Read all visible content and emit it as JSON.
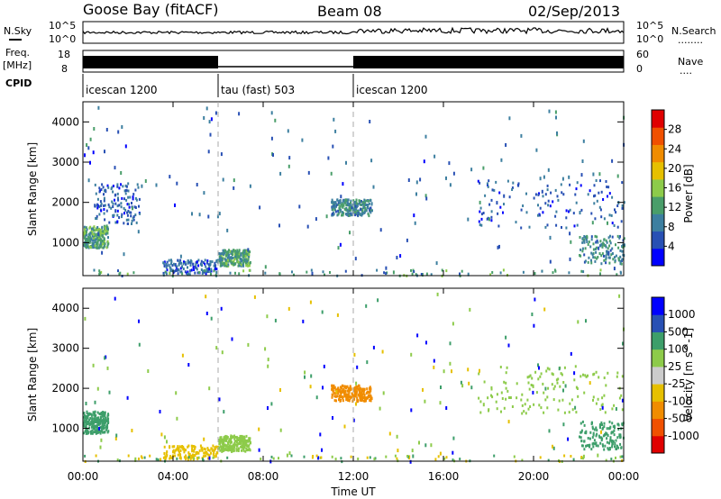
{
  "header": {
    "station": "Goose Bay (fitACF)",
    "beam": "Beam 08",
    "date": "02/Sep/2013"
  },
  "labels": {
    "nsky": "N.Sky",
    "nsearch": "N.Search",
    "nsearch_dots": "........",
    "freq": "Freq.",
    "mhz": "[MHz]",
    "nave": "Nave",
    "nave_dots": "....",
    "cpid": "CPID"
  },
  "noise_panel": {
    "left_ticks": [
      "10^5",
      "10^0"
    ],
    "right_ticks": [
      "10^5",
      "10^0"
    ]
  },
  "freq_panel": {
    "left_ticks": [
      "18",
      "8"
    ],
    "right_ticks": [
      "60",
      "0"
    ]
  },
  "cpid_segments": [
    {
      "label": "icescan 1200",
      "start_hour": 0,
      "end_hour": 6
    },
    {
      "label": "tau (fast) 503",
      "start_hour": 6,
      "end_hour": 12
    },
    {
      "label": "icescan 1200",
      "start_hour": 12,
      "end_hour": 24
    }
  ],
  "chart_data": [
    {
      "type": "heatmap",
      "parameter": "power",
      "ylabel": "Slant Range [km]",
      "ylim": [
        180,
        4500
      ],
      "yticks": [
        1000,
        2000,
        3000,
        4000
      ],
      "xlim_hours": [
        0,
        24
      ],
      "colorbar": {
        "label": "Power [dB]",
        "range": [
          0,
          32
        ],
        "tick_labels": [
          "28",
          "24",
          "20",
          "16",
          "12",
          "8",
          "4"
        ],
        "tick_values": [
          28,
          24,
          20,
          16,
          12,
          8,
          4
        ],
        "colors": [
          "#0000ff",
          "#2850b4",
          "#3d7fa0",
          "#4a9e6a",
          "#8dcb4a",
          "#e6c000",
          "#f08c00",
          "#f05000",
          "#e00000"
        ]
      },
      "scatter_regions": [
        {
          "t": [
            0.0,
            1.1
          ],
          "r": [
            900,
            1450
          ],
          "value": 12,
          "density": "high"
        },
        {
          "t": [
            0.5,
            2.5
          ],
          "r": [
            1500,
            2500
          ],
          "value": 6,
          "density": "med"
        },
        {
          "t": [
            3.5,
            6.0
          ],
          "r": [
            250,
            600
          ],
          "value": 6,
          "density": "med"
        },
        {
          "t": [
            6.0,
            7.4
          ],
          "r": [
            450,
            850
          ],
          "value": 12,
          "density": "high"
        },
        {
          "t": [
            11.0,
            12.8
          ],
          "r": [
            1700,
            2100
          ],
          "value": 10,
          "density": "high"
        },
        {
          "t": [
            17.5,
            24.0
          ],
          "r": [
            1400,
            2600
          ],
          "value": 6,
          "density": "med"
        },
        {
          "t": [
            22.0,
            24.0
          ],
          "r": [
            500,
            1200
          ],
          "value": 10,
          "density": "med"
        }
      ]
    },
    {
      "type": "heatmap",
      "parameter": "velocity",
      "ylabel": "Slant Range [km]",
      "ylim": [
        180,
        4500
      ],
      "yticks": [
        1000,
        2000,
        3000,
        4000
      ],
      "xlim_hours": [
        0,
        24
      ],
      "colorbar": {
        "label": "Velocity [m s^-1]",
        "tick_labels": [
          "1000",
          "500",
          "100",
          "25",
          "-25",
          "-100",
          "-500",
          "-1000"
        ],
        "colors": [
          "#e00000",
          "#f05000",
          "#f08c00",
          "#e6c000",
          "#cccccc",
          "#8dcb4a",
          "#3d9e6a",
          "#2850b4",
          "#0000ff"
        ]
      },
      "scatter_regions": [
        {
          "t": [
            0.0,
            1.1
          ],
          "r": [
            900,
            1450
          ],
          "value": "100",
          "density": "high"
        },
        {
          "t": [
            3.5,
            6.0
          ],
          "r": [
            250,
            600
          ],
          "value": "-100",
          "density": "med"
        },
        {
          "t": [
            6.0,
            7.4
          ],
          "r": [
            450,
            850
          ],
          "value": "25",
          "density": "high"
        },
        {
          "t": [
            11.0,
            12.8
          ],
          "r": [
            1700,
            2100
          ],
          "value": "-500",
          "density": "high"
        },
        {
          "t": [
            17.5,
            24.0
          ],
          "r": [
            1400,
            2600
          ],
          "value": "25",
          "density": "med"
        },
        {
          "t": [
            22.0,
            24.0
          ],
          "r": [
            500,
            1200
          ],
          "value": "100",
          "density": "med"
        }
      ]
    }
  ],
  "x_axis": {
    "tick_labels": [
      "00:00",
      "04:00",
      "08:00",
      "12:00",
      "16:00",
      "20:00",
      "00:00"
    ],
    "tick_hours": [
      0,
      4,
      8,
      12,
      16,
      20,
      24
    ],
    "label": "Time UT"
  }
}
